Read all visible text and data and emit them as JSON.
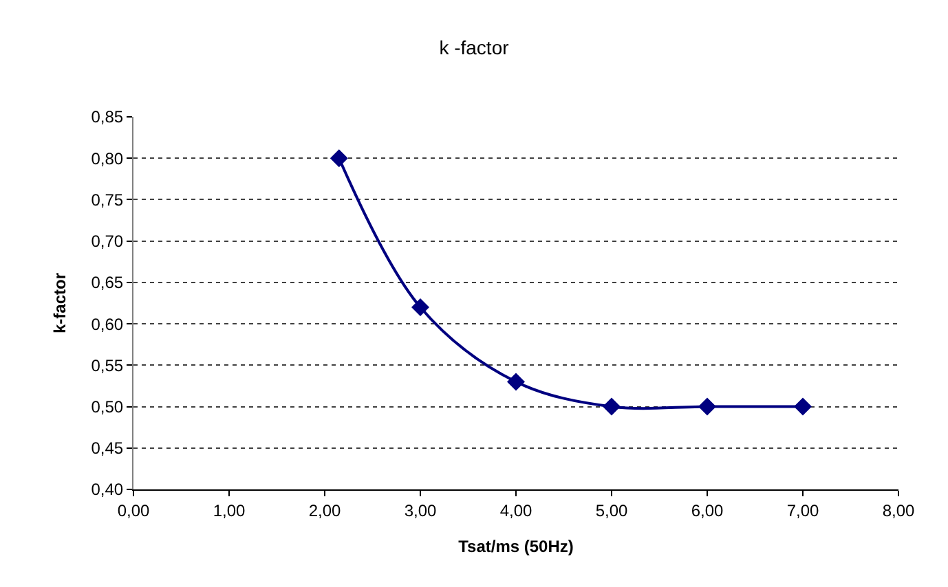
{
  "chart_data": {
    "type": "line",
    "title": "k -factor",
    "xlabel": "Tsat/ms (50Hz)",
    "ylabel": "k-factor",
    "x": [
      2.15,
      3,
      4,
      5,
      6,
      7
    ],
    "series": [
      {
        "color": "#000080",
        "values": [
          0.8,
          0.62,
          0.53,
          0.5,
          0.5,
          0.5
        ]
      }
    ],
    "xlim": [
      0,
      8
    ],
    "xticks": [
      {
        "value": 0,
        "label": "0,00"
      },
      {
        "value": 1,
        "label": "1,00"
      },
      {
        "value": 2,
        "label": "2,00"
      },
      {
        "value": 3,
        "label": "3,00"
      },
      {
        "value": 4,
        "label": "4,00"
      },
      {
        "value": 5,
        "label": "5,00"
      },
      {
        "value": 6,
        "label": "6,00"
      },
      {
        "value": 7,
        "label": "7,00"
      },
      {
        "value": 8,
        "label": "8,00"
      }
    ],
    "ylim": [
      0.4,
      0.85
    ],
    "yticks": [
      {
        "value": 0.4,
        "label": "0,40"
      },
      {
        "value": 0.45,
        "label": "0,45"
      },
      {
        "value": 0.5,
        "label": "0,50"
      },
      {
        "value": 0.55,
        "label": "0,55"
      },
      {
        "value": 0.6,
        "label": "0,60"
      },
      {
        "value": 0.65,
        "label": "0,65"
      },
      {
        "value": 0.7,
        "label": "0,70"
      },
      {
        "value": 0.75,
        "label": "0,75"
      },
      {
        "value": 0.8,
        "label": "0,80"
      },
      {
        "value": 0.85,
        "label": "0,85"
      }
    ],
    "grid": "y",
    "marker": "diamond",
    "line_style": "solid",
    "legend": false
  }
}
